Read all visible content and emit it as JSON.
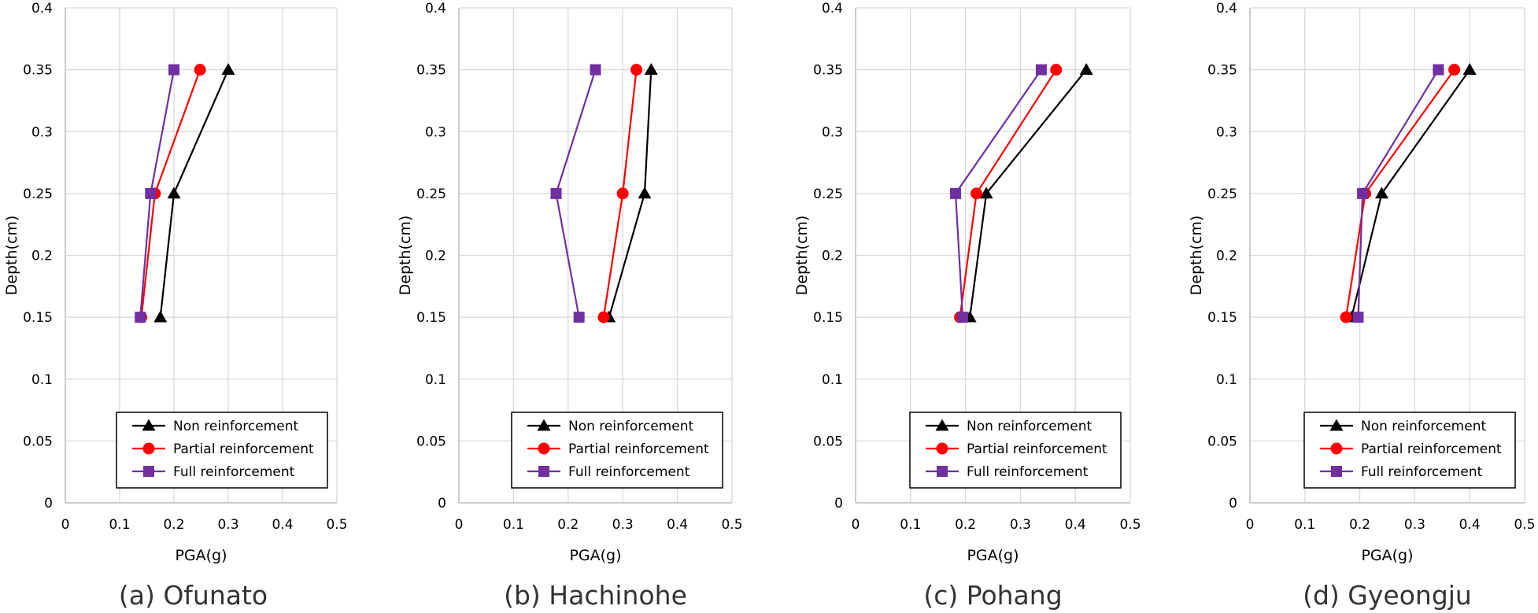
{
  "chart_data": [
    {
      "type": "line",
      "caption": "(a) Ofunato",
      "xlabel": "PGA(g)",
      "ylabel": "Depth(cm)",
      "xlim": [
        0,
        0.5
      ],
      "ylim": [
        0,
        0.4
      ],
      "xticks": [
        "0",
        "0.1",
        "0.2",
        "0.3",
        "0.4",
        "0.5"
      ],
      "yticks": [
        "0",
        "0.05",
        "0.1",
        "0.15",
        "0.2",
        "0.25",
        "0.3",
        "0.35",
        "0.4"
      ],
      "grid": true,
      "legend_position": "bottom-right",
      "series": [
        {
          "name": "Non reinforcement",
          "color": "#000000",
          "marker": "triangle",
          "points": [
            {
              "x": 0.175,
              "y": 0.15
            },
            {
              "x": 0.2,
              "y": 0.25
            },
            {
              "x": 0.3,
              "y": 0.35
            }
          ]
        },
        {
          "name": "Partial reinforcement",
          "color": "#ff0000",
          "marker": "circle",
          "points": [
            {
              "x": 0.14,
              "y": 0.15
            },
            {
              "x": 0.165,
              "y": 0.25
            },
            {
              "x": 0.248,
              "y": 0.35
            }
          ]
        },
        {
          "name": "Full reinforcement",
          "color": "#7030a0",
          "marker": "square",
          "points": [
            {
              "x": 0.138,
              "y": 0.15
            },
            {
              "x": 0.157,
              "y": 0.25
            },
            {
              "x": 0.2,
              "y": 0.35
            }
          ]
        }
      ]
    },
    {
      "type": "line",
      "caption": "(b) Hachinohe",
      "xlabel": "PGA(g)",
      "ylabel": "Depth(cm)",
      "xlim": [
        0,
        0.5
      ],
      "ylim": [
        0,
        0.4
      ],
      "xticks": [
        "0",
        "0.1",
        "0.2",
        "0.3",
        "0.4",
        "0.5"
      ],
      "yticks": [
        "0",
        "0.05",
        "0.1",
        "0.15",
        "0.2",
        "0.25",
        "0.3",
        "0.35",
        "0.4"
      ],
      "grid": true,
      "legend_position": "bottom-right",
      "series": [
        {
          "name": "Non reinforcement",
          "color": "#000000",
          "marker": "triangle",
          "points": [
            {
              "x": 0.275,
              "y": 0.15
            },
            {
              "x": 0.34,
              "y": 0.25
            },
            {
              "x": 0.352,
              "y": 0.35
            }
          ]
        },
        {
          "name": "Partial reinforcement",
          "color": "#ff0000",
          "marker": "circle",
          "points": [
            {
              "x": 0.265,
              "y": 0.15
            },
            {
              "x": 0.3,
              "y": 0.25
            },
            {
              "x": 0.325,
              "y": 0.35
            }
          ]
        },
        {
          "name": "Full reinforcement",
          "color": "#7030a0",
          "marker": "square",
          "points": [
            {
              "x": 0.22,
              "y": 0.15
            },
            {
              "x": 0.178,
              "y": 0.25
            },
            {
              "x": 0.25,
              "y": 0.35
            }
          ]
        }
      ]
    },
    {
      "type": "line",
      "caption": "(c) Pohang",
      "xlabel": "PGA(g)",
      "ylabel": "Depth(cm)",
      "xlim": [
        0,
        0.5
      ],
      "ylim": [
        0,
        0.4
      ],
      "xticks": [
        "0",
        "0.1",
        "0.2",
        "0.3",
        "0.4",
        "0.5"
      ],
      "yticks": [
        "0",
        "0.05",
        "0.1",
        "0.15",
        "0.2",
        "0.25",
        "0.3",
        "0.35",
        "0.4"
      ],
      "grid": true,
      "legend_position": "bottom-right",
      "series": [
        {
          "name": "Non reinforcement",
          "color": "#000000",
          "marker": "triangle",
          "points": [
            {
              "x": 0.208,
              "y": 0.15
            },
            {
              "x": 0.238,
              "y": 0.25
            },
            {
              "x": 0.42,
              "y": 0.35
            }
          ]
        },
        {
          "name": "Partial reinforcement",
          "color": "#ff0000",
          "marker": "circle",
          "points": [
            {
              "x": 0.19,
              "y": 0.15
            },
            {
              "x": 0.22,
              "y": 0.25
            },
            {
              "x": 0.365,
              "y": 0.35
            }
          ]
        },
        {
          "name": "Full reinforcement",
          "color": "#7030a0",
          "marker": "square",
          "points": [
            {
              "x": 0.195,
              "y": 0.15
            },
            {
              "x": 0.182,
              "y": 0.25
            },
            {
              "x": 0.338,
              "y": 0.35
            }
          ]
        }
      ]
    },
    {
      "type": "line",
      "caption": "(d) Gyeongju",
      "xlabel": "PGA(g)",
      "ylabel": "Depth(cm)",
      "xlim": [
        0,
        0.5
      ],
      "ylim": [
        0,
        0.4
      ],
      "xticks": [
        "0",
        "0.1",
        "0.2",
        "0.3",
        "0.4",
        "0.5"
      ],
      "yticks": [
        "0",
        "0.05",
        "0.1",
        "0.15",
        "0.2",
        "0.25",
        "0.3",
        "0.35",
        "0.4"
      ],
      "grid": true,
      "legend_position": "bottom-right",
      "series": [
        {
          "name": "Non reinforcement",
          "color": "#000000",
          "marker": "triangle",
          "points": [
            {
              "x": 0.185,
              "y": 0.15
            },
            {
              "x": 0.24,
              "y": 0.25
            },
            {
              "x": 0.4,
              "y": 0.35
            }
          ]
        },
        {
          "name": "Partial reinforcement",
          "color": "#ff0000",
          "marker": "circle",
          "points": [
            {
              "x": 0.175,
              "y": 0.15
            },
            {
              "x": 0.21,
              "y": 0.25
            },
            {
              "x": 0.372,
              "y": 0.35
            }
          ]
        },
        {
          "name": "Full reinforcement",
          "color": "#7030a0",
          "marker": "square",
          "points": [
            {
              "x": 0.197,
              "y": 0.15
            },
            {
              "x": 0.205,
              "y": 0.25
            },
            {
              "x": 0.343,
              "y": 0.35
            }
          ]
        }
      ]
    }
  ]
}
